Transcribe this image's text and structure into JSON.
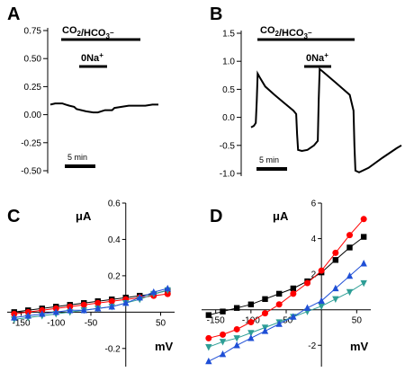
{
  "chart_data": [
    {
      "panel": "A",
      "type": "line",
      "ylim": [
        -0.5,
        0.75
      ],
      "yticks": [
        "0.75",
        "0.50",
        "0.25",
        "0.00",
        "-0.25",
        "-0.50"
      ],
      "yvalues": [
        0.75,
        0.5,
        0.25,
        0.0,
        -0.25,
        -0.5
      ],
      "annotations": {
        "bar1": "CO2/HCO3-",
        "bar2": "0Na+",
        "scale": "5 min"
      },
      "trace": {
        "x": [
          0,
          4,
          10,
          13,
          16,
          20,
          22,
          30,
          36,
          40,
          46,
          52,
          54,
          60,
          66,
          70,
          76,
          80,
          86,
          91
        ],
        "y": [
          0.09,
          0.1,
          0.1,
          0.09,
          0.08,
          0.07,
          0.05,
          0.03,
          0.02,
          0.02,
          0.04,
          0.04,
          0.06,
          0.07,
          0.08,
          0.08,
          0.08,
          0.08,
          0.09,
          0.09
        ]
      }
    },
    {
      "panel": "B",
      "type": "line",
      "ylim": [
        -1.0,
        1.5
      ],
      "yticks": [
        "1.5",
        "1.0",
        "0.5",
        "0.0",
        "-0.5",
        "-1.0"
      ],
      "yvalues": [
        1.5,
        1.0,
        0.5,
        0.0,
        -0.5,
        -1.0
      ],
      "annotations": {
        "bar1": "CO2/HCO3-",
        "bar2": "0Na+",
        "scale": "5 min"
      },
      "trace": {
        "x": [
          0,
          3,
          5,
          6,
          7,
          9,
          15,
          25,
          35,
          45,
          48,
          49,
          50,
          54,
          60,
          67,
          71,
          72,
          73,
          76,
          90,
          105,
          109,
          110,
          111,
          115,
          125,
          140,
          155,
          160
        ],
        "y": [
          -0.18,
          -0.15,
          -0.1,
          0.3,
          0.78,
          0.72,
          0.55,
          0.4,
          0.26,
          0.12,
          0.06,
          -0.3,
          -0.58,
          -0.6,
          -0.58,
          -0.5,
          -0.42,
          0.3,
          0.86,
          0.82,
          0.62,
          0.4,
          0.12,
          -0.5,
          -0.95,
          -0.98,
          -0.9,
          -0.72,
          -0.55,
          -0.5
        ]
      }
    },
    {
      "panel": "C",
      "type": "line",
      "unit_y": "μA",
      "unit_x": "mV",
      "xticks": [
        "-150",
        "-100",
        "-50",
        "50"
      ],
      "xvalues": [
        -150,
        -100,
        -50,
        50
      ],
      "yticks": [
        "0.6",
        "0.4",
        "0.2",
        "-0.2"
      ],
      "yvalues": [
        0.6,
        0.4,
        0.2,
        -0.2
      ],
      "xlim": [
        -170,
        70
      ],
      "ylim": [
        -0.3,
        0.6
      ],
      "x": [
        -160,
        -140,
        -120,
        -100,
        -80,
        -60,
        -40,
        -20,
        0,
        20,
        40,
        60
      ],
      "series": [
        {
          "color": "#000000",
          "marker": "square",
          "values": [
            0.0,
            0.01,
            0.02,
            0.03,
            0.04,
            0.05,
            0.06,
            0.07,
            0.08,
            0.09,
            0.1,
            0.12
          ]
        },
        {
          "color": "#ff0000",
          "marker": "circle",
          "values": [
            -0.01,
            0.0,
            0.01,
            0.02,
            0.03,
            0.04,
            0.05,
            0.06,
            0.07,
            0.08,
            0.09,
            0.1
          ]
        },
        {
          "color": "#2e9e96",
          "marker": "triangle-down",
          "values": [
            -0.04,
            -0.03,
            -0.02,
            -0.01,
            0.0,
            0.01,
            0.02,
            0.03,
            0.05,
            0.07,
            0.1,
            0.12
          ]
        },
        {
          "color": "#1f4fd6",
          "marker": "triangle-up",
          "values": [
            -0.03,
            -0.02,
            -0.01,
            0.0,
            0.01,
            0.01,
            0.02,
            0.03,
            0.05,
            0.08,
            0.11,
            0.13
          ]
        }
      ]
    },
    {
      "panel": "D",
      "type": "line",
      "unit_y": "μA",
      "unit_x": "mV",
      "xticks": [
        "-150",
        "-100",
        "-50",
        "50"
      ],
      "xvalues": [
        -150,
        -100,
        -50,
        50
      ],
      "yticks": [
        "6",
        "4",
        "2",
        "-2"
      ],
      "yvalues": [
        6,
        4,
        2,
        -2
      ],
      "xlim": [
        -170,
        70
      ],
      "ylim": [
        -3.2,
        6
      ],
      "x": [
        -160,
        -140,
        -120,
        -100,
        -80,
        -60,
        -40,
        -20,
        0,
        20,
        40,
        60
      ],
      "series": [
        {
          "color": "#000000",
          "marker": "square",
          "values": [
            -0.3,
            -0.1,
            0.1,
            0.3,
            0.6,
            0.9,
            1.2,
            1.6,
            2.1,
            2.8,
            3.5,
            4.1
          ]
        },
        {
          "color": "#ff0000",
          "marker": "circle",
          "values": [
            -1.6,
            -1.4,
            -1.1,
            -0.7,
            -0.2,
            0.3,
            0.9,
            1.5,
            2.2,
            3.2,
            4.2,
            5.1
          ]
        },
        {
          "color": "#2e9e96",
          "marker": "triangle-down",
          "values": [
            -2.1,
            -1.8,
            -1.6,
            -1.3,
            -1.0,
            -0.7,
            -0.4,
            -0.1,
            0.2,
            0.6,
            1.0,
            1.5
          ]
        },
        {
          "color": "#1f4fd6",
          "marker": "triangle-up",
          "values": [
            -2.9,
            -2.5,
            -2.0,
            -1.6,
            -1.2,
            -0.8,
            -0.4,
            0.1,
            0.5,
            1.2,
            1.9,
            2.6
          ]
        }
      ]
    }
  ]
}
